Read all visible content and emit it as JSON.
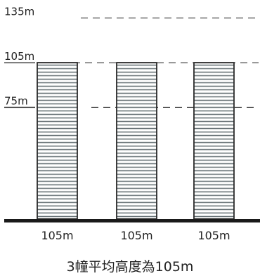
{
  "levels": [
    {
      "label": "135m",
      "value": 135
    },
    {
      "label": "105m",
      "value": 105
    },
    {
      "label": "75m",
      "value": 75
    }
  ],
  "buildings": [
    {
      "label": "105m",
      "height": 105
    },
    {
      "label": "105m",
      "height": 105
    },
    {
      "label": "105m",
      "height": 105
    }
  ],
  "caption": "3幢平均高度為105m",
  "colors": {
    "ground": "#1a1a1a",
    "outline": "#2a2a2a",
    "stripe": "#6a7478",
    "dash": "#333333"
  }
}
